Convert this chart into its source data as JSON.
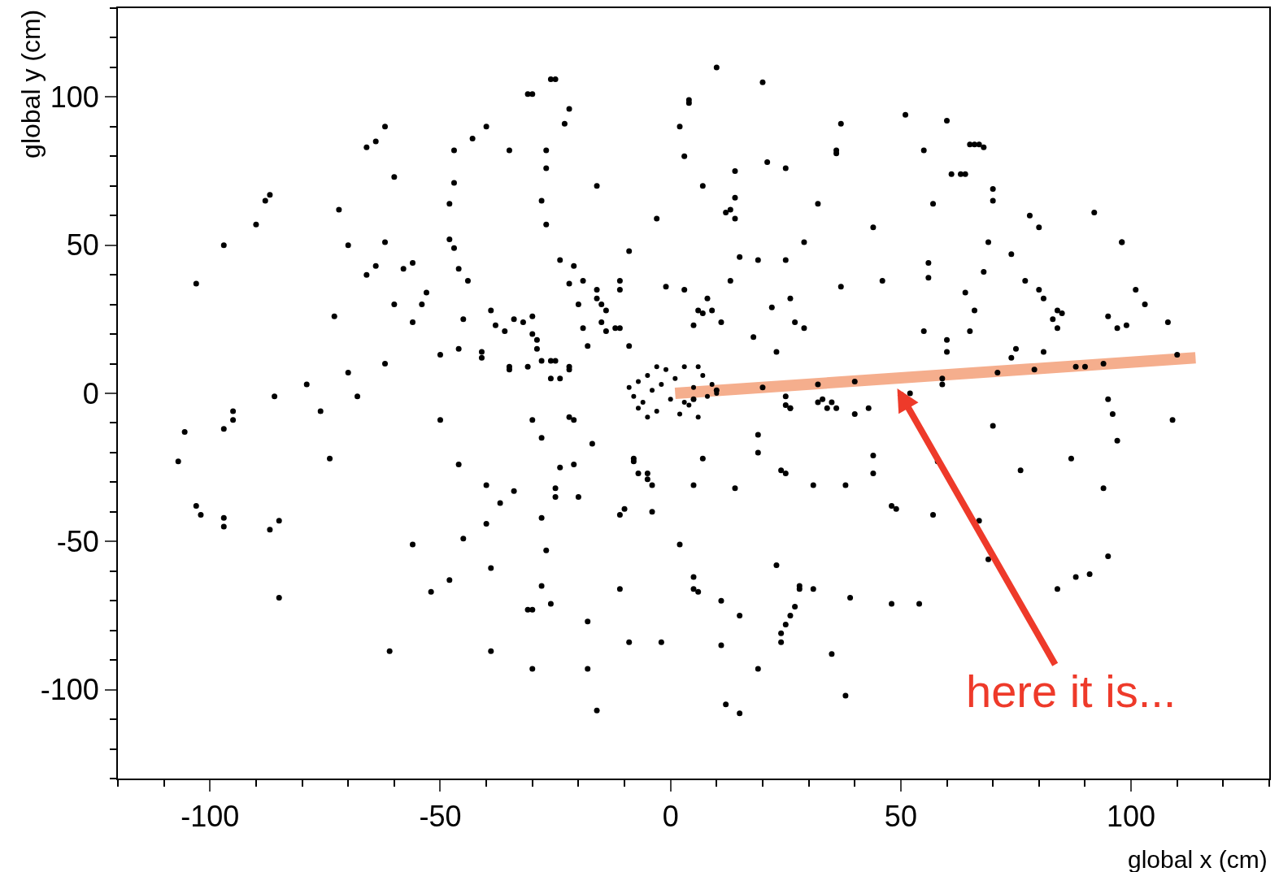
{
  "chart_data": {
    "type": "scatter",
    "xlabel": "global x (cm)",
    "ylabel": "global y (cm)",
    "xlim": [
      -120,
      130
    ],
    "ylim": [
      -130,
      130
    ],
    "xticks": [
      -100,
      -50,
      0,
      50,
      100
    ],
    "yticks": [
      -100,
      -50,
      0,
      50,
      100
    ],
    "grid": false,
    "marker": "circle",
    "annotations": [
      {
        "text": "here it is...",
        "x": 48,
        "y": 5
      }
    ],
    "series": [
      {
        "color": "#000000",
        "x": [
          -106.9,
          -105.5,
          -103,
          -103,
          -102,
          -97,
          -97,
          -97,
          -97,
          -95,
          -95,
          -90,
          -88,
          -87,
          -87,
          -85,
          -86,
          -85,
          -79,
          -76,
          -74,
          -73,
          -72,
          -70,
          -70,
          -68,
          -66,
          -66,
          -64,
          -64,
          -62,
          -62,
          -62,
          -61,
          -60,
          -60,
          -58,
          -56,
          -56,
          -56,
          -54,
          -53,
          -52,
          -50,
          -50,
          -48,
          -48,
          -47,
          -47,
          -47,
          -48,
          -46,
          -46,
          -46,
          -45,
          -45,
          -44,
          -43,
          -41,
          -41,
          -40,
          -40,
          -40,
          -39,
          -39,
          -39,
          -38,
          -37,
          -36,
          -35,
          -35,
          -35,
          -34,
          -34,
          -32,
          -31,
          -31,
          -31,
          -30,
          -30,
          -30,
          -30,
          -30,
          -30,
          -29,
          -29,
          -28,
          -28,
          -28,
          -28,
          -28,
          -27,
          -27,
          -27,
          -27,
          -26,
          -26,
          -25,
          -26,
          -26,
          -25,
          -25,
          -25,
          -24,
          -24,
          -24,
          -23,
          -22,
          -22,
          -22,
          -22,
          -22,
          -21,
          -21,
          -21,
          -20,
          -20,
          -19,
          -19,
          -18,
          -18,
          -18,
          -17,
          -16,
          -16,
          -16,
          -16,
          -15,
          -15,
          -14,
          -14,
          -12,
          -11,
          -11,
          -11,
          -11,
          -11,
          -10,
          -9,
          -9,
          -9,
          -8,
          -8,
          -7,
          -5,
          -5,
          -4,
          -4,
          -3,
          -2,
          -1,
          2,
          2,
          3,
          3,
          4,
          4,
          5,
          5,
          5,
          5,
          6,
          6,
          7,
          7,
          7,
          8,
          9,
          10,
          11,
          11,
          11,
          12,
          12,
          13,
          13,
          14,
          14,
          14,
          14,
          15,
          15,
          15,
          18,
          19,
          19,
          19,
          19,
          20,
          21,
          22,
          23,
          23,
          24,
          24,
          24,
          25,
          25,
          25,
          25,
          25,
          25,
          26,
          26,
          26,
          26,
          27,
          27,
          28,
          28,
          29,
          29,
          31,
          31,
          32,
          32,
          33,
          34,
          35,
          35,
          36,
          36,
          36,
          37,
          37,
          38,
          38,
          39,
          40,
          43,
          44,
          44,
          44,
          46,
          48,
          48,
          49,
          51,
          52,
          54,
          55,
          55,
          56,
          56,
          57,
          57,
          58,
          59,
          60,
          60,
          60,
          61,
          63,
          64,
          64,
          65,
          65,
          66,
          66,
          67,
          67,
          68,
          68,
          69,
          69,
          70,
          70,
          70,
          74,
          74,
          75,
          76,
          77,
          78,
          80,
          80,
          81,
          81,
          83,
          84,
          84,
          84,
          85,
          87,
          88,
          90,
          91,
          92,
          94,
          94,
          95,
          95,
          95,
          96,
          97,
          97,
          98,
          98,
          99,
          101,
          103,
          108,
          109,
          110,
          5,
          10,
          20,
          32,
          40,
          59,
          71,
          79,
          88
        ],
        "values": [
          -23,
          -13,
          37,
          -38,
          -41,
          50,
          -12,
          -42,
          -45,
          -6,
          -9,
          57,
          65,
          67,
          -46,
          -43,
          -1,
          -69,
          3,
          -6,
          -22,
          26,
          62,
          7,
          50,
          -1,
          83,
          40,
          43,
          85,
          90,
          10,
          51,
          -87,
          30,
          73,
          42,
          -51,
          44,
          24,
          30,
          34,
          -67,
          -9,
          13,
          64,
          52,
          71,
          82,
          49,
          -63,
          15,
          42,
          -24,
          -49,
          25,
          38,
          86,
          14,
          12,
          90,
          -31,
          -44,
          28,
          -87,
          -59,
          23,
          -37,
          21,
          82,
          9,
          8,
          -33,
          25,
          24,
          101,
          9,
          -73,
          -73,
          -9,
          26,
          20,
          -93,
          101,
          18,
          15,
          -15,
          -42,
          11,
          65,
          -65,
          76,
          57,
          82,
          -53,
          -71,
          106,
          106,
          5,
          11,
          11,
          -32,
          -35,
          -25,
          45,
          5,
          91,
          9,
          8,
          -8,
          96,
          37,
          -24,
          -9,
          43,
          30,
          -35,
          38,
          22,
          16,
          -93,
          -77,
          -17,
          -107,
          70,
          32,
          35,
          30,
          24,
          21,
          28,
          22,
          -41,
          -66,
          35,
          38,
          22,
          -39,
          16,
          48,
          -84,
          -22,
          -23,
          -27,
          -29,
          -27,
          -31,
          -40,
          59,
          -84,
          36,
          -51,
          90,
          35,
          80,
          99,
          98,
          23,
          -62,
          -31,
          -66,
          28,
          -67,
          -22,
          27,
          70,
          32,
          28,
          110,
          -85,
          -70,
          24,
          -105,
          61,
          62,
          38,
          59,
          -32,
          75,
          66,
          46,
          -75,
          -108,
          19,
          45,
          -20,
          -93,
          -14,
          105,
          78,
          29,
          -58,
          14,
          -84,
          -81,
          -26,
          -27,
          -4,
          45,
          -1,
          -78,
          76,
          32,
          -75,
          -5,
          -5,
          -72,
          24,
          -66,
          -65,
          51,
          22,
          -66,
          -31,
          -3,
          64,
          -2,
          -5,
          -88,
          -3,
          -5,
          81,
          82,
          36,
          91,
          -31,
          -102,
          -69,
          -7,
          -5,
          56,
          -21,
          -27,
          38,
          -71,
          -38,
          -39,
          94,
          0,
          -71,
          82,
          21,
          44,
          39,
          -41,
          64,
          -23,
          3,
          92,
          14,
          18,
          74,
          74,
          34,
          74,
          21,
          84,
          28,
          84,
          -43,
          84,
          41,
          83,
          -56,
          51,
          69,
          65,
          -11,
          12,
          47,
          15,
          -26,
          38,
          60,
          35,
          56,
          14,
          32,
          25,
          -66,
          22,
          28,
          27,
          -22,
          -62,
          9,
          -61,
          61,
          -32,
          10,
          -55,
          26,
          -2,
          -7,
          22,
          -16,
          51,
          51,
          23,
          35,
          30,
          24,
          -9,
          13,
          -2,
          1,
          2,
          3,
          4,
          5,
          7,
          8,
          9
        ]
      },
      {
        "color": "#000000",
        "x": [
          -9,
          -8,
          -7,
          -6,
          -5,
          -4,
          -3,
          -2,
          -1,
          0,
          1,
          2,
          3,
          4,
          5,
          6,
          7,
          8,
          9,
          -5,
          -7,
          3,
          6,
          -3,
          10
        ],
        "values": [
          2,
          -1,
          4,
          -3,
          6,
          1,
          -6,
          3,
          8,
          -2,
          5,
          -7,
          9,
          -4,
          2,
          -8,
          6,
          -1,
          3,
          -8,
          -5,
          -3,
          9,
          9,
          0
        ]
      },
      {
        "color": "#f4a07a",
        "type": "line",
        "line_style": "solid",
        "marker": "none",
        "x": [
          1,
          114
        ],
        "values": [
          0,
          12
        ]
      }
    ]
  }
}
